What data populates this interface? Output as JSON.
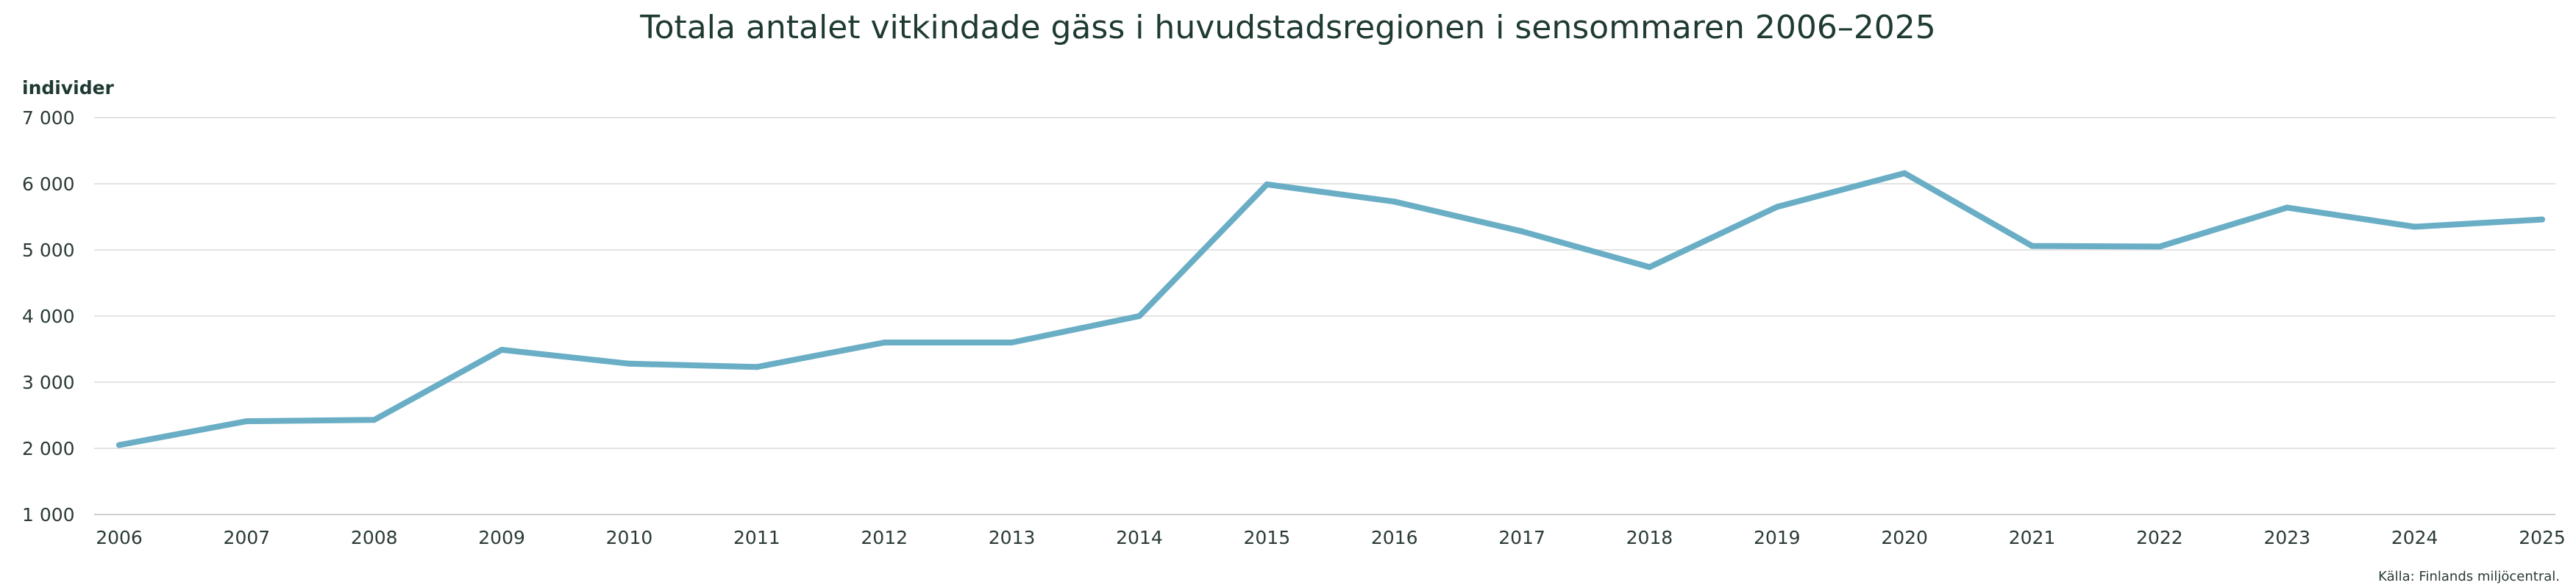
{
  "chart_data": {
    "type": "line",
    "title": "Totala antalet vitkindade gäss i huvudstadsregionen i sensommaren 2006–2025",
    "ylabel": "individer",
    "xlabel": "",
    "source": "Källa: Finlands miljöcentral.",
    "x": [
      "2006",
      "2007",
      "2008",
      "2009",
      "2010",
      "2011",
      "2012",
      "2013",
      "2014",
      "2015",
      "2016",
      "2017",
      "2018",
      "2019",
      "2020",
      "2021",
      "2022",
      "2023",
      "2024",
      "2025"
    ],
    "series": [
      {
        "values": [
          2050,
          2410,
          2430,
          3490,
          3280,
          3230,
          3600,
          3600,
          4000,
          5990,
          5730,
          5280,
          4740,
          5650,
          6160,
          5060,
          5050,
          5640,
          5350,
          5460
        ],
        "color": "#6aaec6"
      }
    ],
    "ylim": [
      1000,
      7000
    ],
    "yticks": [
      1000,
      2000,
      3000,
      4000,
      5000,
      6000,
      7000
    ],
    "ytick_labels": [
      "1 000",
      "2 000",
      "3 000",
      "4 000",
      "5 000",
      "6 000",
      "7 000"
    ],
    "grid": true,
    "legend": "none"
  }
}
